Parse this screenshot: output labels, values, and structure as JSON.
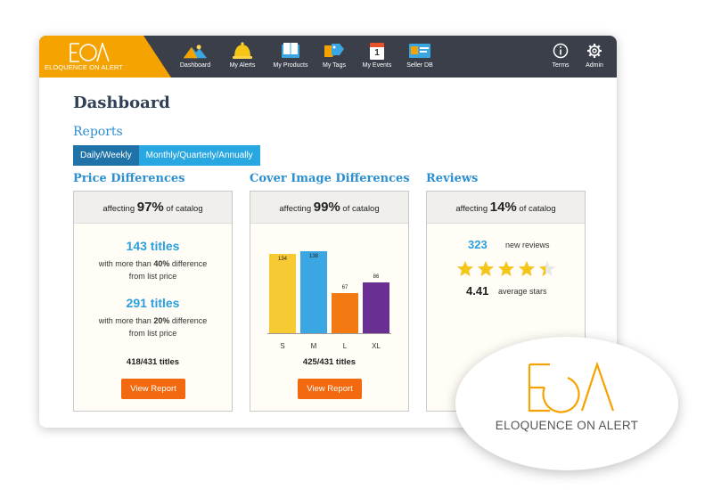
{
  "brand": {
    "logo_text": "EOA",
    "name": "ELOQUENCE ON ALERT"
  },
  "colors": {
    "accent": "#f5a300",
    "topbar": "#3b3f4a",
    "link": "#2b8fd0",
    "button": "#f2690f",
    "tab_active": "#1f73a8",
    "tab": "#29a7e1"
  },
  "nav": {
    "items": [
      {
        "label": "Dashboard",
        "icon": "mountain-icon"
      },
      {
        "label": "My Alerts",
        "icon": "bell-icon"
      },
      {
        "label": "My Products",
        "icon": "book-icon"
      },
      {
        "label": "My Tags",
        "icon": "tag-icon"
      },
      {
        "label": "My Events",
        "icon": "calendar-icon"
      },
      {
        "label": "Seller DB",
        "icon": "id-card-icon"
      }
    ],
    "right": [
      {
        "label": "Terms",
        "icon": "info-icon"
      },
      {
        "label": "Admin",
        "icon": "gear-icon"
      }
    ],
    "calendar_day": "1"
  },
  "page": {
    "title": "Dashboard",
    "reports_label": "Reports"
  },
  "tabs": [
    {
      "label": "Daily/Weekly",
      "active": true
    },
    {
      "label": "Monthly/Quarterly/Annually",
      "active": false
    }
  ],
  "price": {
    "title": "Price Differences",
    "head_pre": "affecting",
    "head_pct": "97%",
    "head_post": "of catalog",
    "stat1_value": "143 titles",
    "stat1_line1_pre": "with more than",
    "stat1_line1_bold": "40%",
    "stat1_line1_post": "difference",
    "stat1_line2": "from list price",
    "stat2_value": "291 titles",
    "stat2_line1_pre": "with more than",
    "stat2_line1_bold": "20%",
    "stat2_line1_post": "difference",
    "stat2_line2": "from list price",
    "count": "418/431 titles",
    "button": "View Report"
  },
  "cover": {
    "title": "Cover Image Differences",
    "head_pre": "affecting",
    "head_pct": "99%",
    "head_post": "of catalog",
    "count": "425/431 titles",
    "button": "View Report"
  },
  "reviews": {
    "title": "Reviews",
    "head_pre": "affecting",
    "head_pct": "14%",
    "head_post": "of catalog",
    "new_count": "323",
    "new_label": "new reviews",
    "avg": "4.41",
    "avg_label": "average stars",
    "rating": 4.41,
    "max_stars": 5
  },
  "chart_data": {
    "type": "bar",
    "categories": [
      "S",
      "M",
      "L",
      "XL"
    ],
    "values": [
      134,
      138,
      67,
      86
    ],
    "value_labels": [
      "134",
      "138",
      "67",
      "86"
    ],
    "colors": [
      "#f7c933",
      "#3aa7e2",
      "#f37a12",
      "#6a2f93"
    ],
    "ylim": [
      0,
      150
    ],
    "title": "",
    "xlabel": "",
    "ylabel": ""
  },
  "overlay": {
    "logo_text": "EOA",
    "name": "ELOQUENCE ON ALERT"
  }
}
